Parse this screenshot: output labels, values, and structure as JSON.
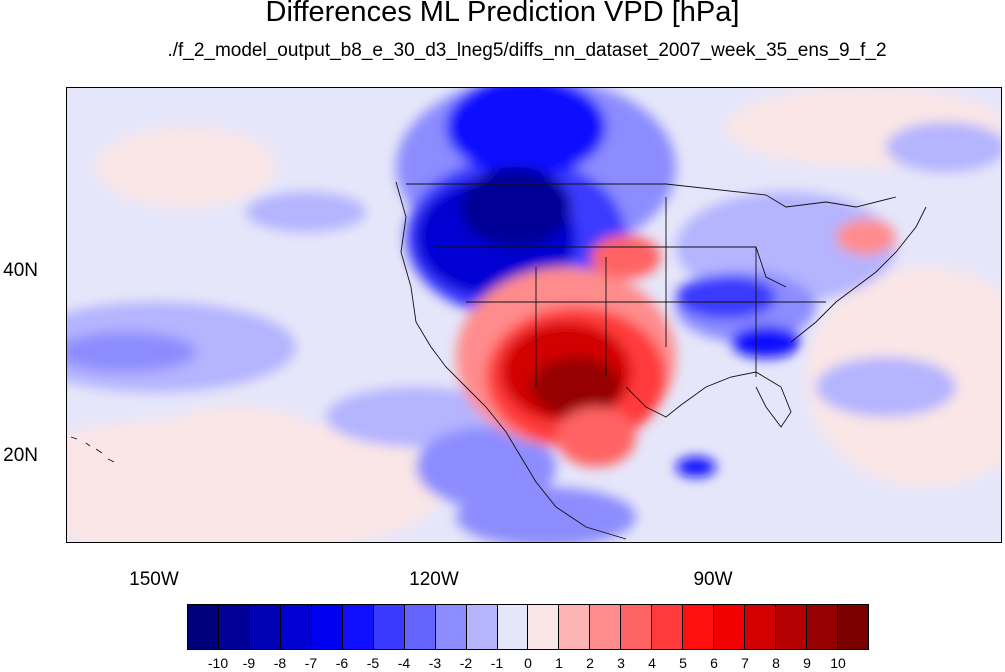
{
  "title": "Differences ML Prediction VPD [hPa]",
  "subtitle": "./f_2_model_output_b8_e_30_d3_lneg5/diffs_nn_dataset_2007_week_35_ens_9_f_2",
  "map": {
    "lat_labels": [
      "40N",
      "20N"
    ],
    "lon_labels": [
      "150W",
      "120W",
      "90W"
    ]
  },
  "colorbar": {
    "labels": [
      "-10",
      "-9",
      "-8",
      "-7",
      "-6",
      "-5",
      "-4",
      "-3",
      "-2",
      "-1",
      "0",
      "1",
      "2",
      "3",
      "4",
      "5",
      "6",
      "7",
      "8",
      "9",
      "10"
    ],
    "colors": [
      "#00007a",
      "#000096",
      "#0000b4",
      "#0000d2",
      "#0000f0",
      "#1010ff",
      "#3a3aff",
      "#6464ff",
      "#8c8cff",
      "#b4b4ff",
      "#e6e6fa",
      "#fae6e6",
      "#ffb4b4",
      "#ff8c8c",
      "#ff6464",
      "#ff3a3a",
      "#ff1010",
      "#f00000",
      "#d20000",
      "#b40000",
      "#960000",
      "#7a0000"
    ]
  }
}
